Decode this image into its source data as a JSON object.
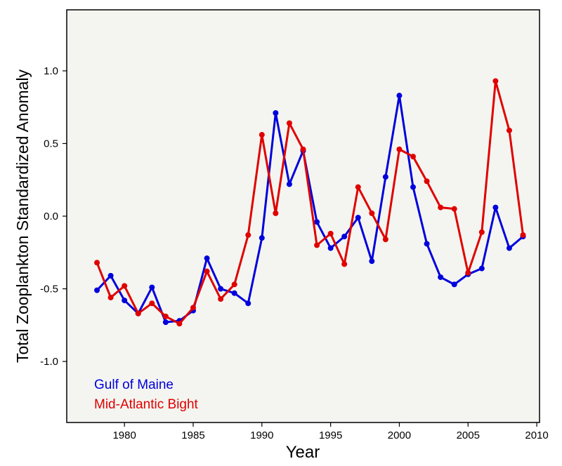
{
  "chart_data": {
    "type": "line",
    "xlabel": "Year",
    "ylabel": "Total Zooplankton Standardized Anomaly",
    "xlim": [
      1975.8,
      2010.2
    ],
    "ylim": [
      -1.42,
      1.42
    ],
    "x_ticks": [
      1980,
      1985,
      1990,
      1995,
      2000,
      2005,
      2010
    ],
    "y_ticks": [
      -1.0,
      -0.5,
      0.0,
      0.5,
      1.0
    ],
    "y_tick_labels": [
      "-1.0",
      "-0.5",
      "0.0",
      "0.5",
      "1.0"
    ],
    "grid": false,
    "legend_position": "bottom-left",
    "plot_background": "#f4f5f0",
    "x": [
      1978,
      1979,
      1980,
      1981,
      1982,
      1983,
      1984,
      1985,
      1986,
      1987,
      1988,
      1989,
      1990,
      1991,
      1992,
      1993,
      1994,
      1995,
      1996,
      1997,
      1998,
      1999,
      2000,
      2001,
      2002,
      2003,
      2004,
      2005,
      2006,
      2007,
      2008,
      2009
    ],
    "series": [
      {
        "name": "Gulf of Maine",
        "color": "#0000dd",
        "values": [
          -0.51,
          -0.41,
          -0.58,
          -0.67,
          -0.49,
          -0.73,
          -0.72,
          -0.65,
          -0.29,
          -0.5,
          -0.53,
          -0.6,
          -0.15,
          0.71,
          0.22,
          0.45,
          -0.04,
          -0.22,
          -0.14,
          -0.01,
          -0.31,
          0.27,
          0.83,
          0.2,
          -0.19,
          -0.42,
          -0.47,
          -0.4,
          -0.36,
          0.06,
          -0.22,
          -0.14
        ]
      },
      {
        "name": "Mid-Atlantic Bight",
        "color": "#e00000",
        "values": [
          -0.32,
          -0.56,
          -0.48,
          -0.67,
          -0.6,
          -0.69,
          -0.74,
          -0.63,
          -0.38,
          -0.57,
          -0.47,
          -0.13,
          0.56,
          0.02,
          0.64,
          0.46,
          -0.2,
          -0.12,
          -0.33,
          0.2,
          0.02,
          -0.16,
          0.46,
          0.41,
          0.24,
          0.06,
          0.05,
          -0.39,
          -0.11,
          0.93,
          0.59,
          -0.13
        ]
      }
    ]
  }
}
